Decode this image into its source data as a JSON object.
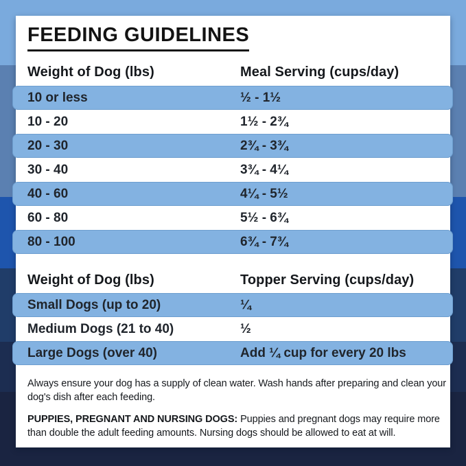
{
  "title": "FEEDING GUIDELINES",
  "meal_table": {
    "col_weight": "Weight of Dog (lbs)",
    "col_serving": "Meal Serving (cups/day)",
    "rows": [
      {
        "weight": "10 or less",
        "serving": "½ - 1½"
      },
      {
        "weight": "10 - 20",
        "serving": "1½ - 2¾"
      },
      {
        "weight": "20 - 30",
        "serving": "2¾ - 3¾"
      },
      {
        "weight": "30 - 40",
        "serving": "3¾ - 4¼"
      },
      {
        "weight": "40 - 60",
        "serving": "4¼ - 5½"
      },
      {
        "weight": "60 - 80",
        "serving": "5½ - 6¾"
      },
      {
        "weight": "80 - 100",
        "serving": "6¾ - 7¾"
      }
    ]
  },
  "topper_table": {
    "col_weight": "Weight of Dog (lbs)",
    "col_serving": "Topper Serving (cups/day)",
    "rows": [
      {
        "weight": "Small Dogs (up to 20)",
        "serving": "¼"
      },
      {
        "weight": "Medium Dogs (21 to 40)",
        "serving": "½"
      },
      {
        "weight": "Large Dogs (over 40)",
        "serving": "Add ¼ cup for every 20 lbs"
      }
    ]
  },
  "notes": {
    "water": "Always ensure your dog has a supply of clean water. Wash hands after preparing and clean your dog's dish after each feeding.",
    "puppies_label": "PUPPIES, PREGNANT AND NURSING DOGS:",
    "puppies_text": " Puppies and pregnant dogs may require more than double the adult feeding amounts. Nursing dogs should be allowed to eat at will."
  },
  "colors": {
    "card_bg": "#ffffff",
    "row_highlight": "#83b2e1",
    "title_text": "#131313",
    "table_text": "#20252c",
    "background_bands": [
      "#7aaadd",
      "#5b80b1",
      "#1e55ad",
      "#203d69",
      "#1c2d51",
      "#1a2441"
    ]
  }
}
